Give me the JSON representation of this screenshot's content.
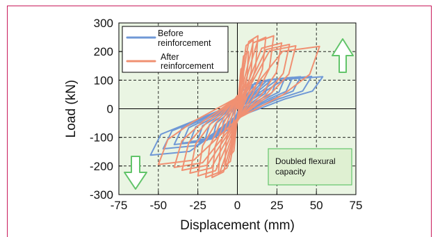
{
  "chart_data": {
    "type": "line",
    "title": "",
    "xlabel": "Displacement (mm)",
    "ylabel": "Load (kN)",
    "xlim": [
      -75,
      75
    ],
    "ylim": [
      -300,
      300
    ],
    "xticks": [
      "-75",
      "-50",
      "-25",
      "0",
      "25",
      "50",
      "75"
    ],
    "yticks": [
      "300",
      "200",
      "100",
      "0",
      "-100",
      "-200",
      "-300"
    ],
    "grid": true,
    "legend_position": "top-left",
    "series": [
      {
        "name": "Before reinforcement",
        "color": "#6f98d6",
        "peaks": [
          {
            "d": 5,
            "p": 68
          },
          {
            "d": 10,
            "p": 80
          },
          {
            "d": 15,
            "p": 90
          },
          {
            "d": 20,
            "p": 98
          },
          {
            "d": 25,
            "p": 103
          },
          {
            "d": 30,
            "p": 107
          },
          {
            "d": 35,
            "p": 110
          },
          {
            "d": 40,
            "p": 112
          },
          {
            "d": 47,
            "p": 113
          },
          {
            "d": 54,
            "p": 112
          }
        ],
        "valleys": [
          {
            "d": -5,
            "p": -68
          },
          {
            "d": -10,
            "p": -80
          },
          {
            "d": -15,
            "p": -90
          },
          {
            "d": -20,
            "p": -100
          },
          {
            "d": -25,
            "p": -108
          },
          {
            "d": -30,
            "p": -115
          },
          {
            "d": -35,
            "p": -120
          },
          {
            "d": -40,
            "p": -125
          },
          {
            "d": -47,
            "p": -140
          },
          {
            "d": -55,
            "p": -162
          }
        ]
      },
      {
        "name": "After reinforcement",
        "color": "#f09072",
        "peaks": [
          {
            "d": 4,
            "p": 150
          },
          {
            "d": 7,
            "p": 200
          },
          {
            "d": 10,
            "p": 240
          },
          {
            "d": 13,
            "p": 255
          },
          {
            "d": 18,
            "p": 250
          },
          {
            "d": 23,
            "p": 255
          },
          {
            "d": 28,
            "p": 230
          },
          {
            "d": 33,
            "p": 225
          },
          {
            "d": 37,
            "p": 220
          },
          {
            "d": 52,
            "p": 218
          }
        ],
        "valleys": [
          {
            "d": -4,
            "p": -160
          },
          {
            "d": -8,
            "p": -200
          },
          {
            "d": -12,
            "p": -225
          },
          {
            "d": -16,
            "p": -240
          },
          {
            "d": -20,
            "p": -240
          },
          {
            "d": -25,
            "p": -235
          },
          {
            "d": -30,
            "p": -225
          },
          {
            "d": -35,
            "p": -215
          },
          {
            "d": -40,
            "p": -205
          },
          {
            "d": -50,
            "p": -195
          }
        ]
      }
    ],
    "annotation": "Doubled flexural capacity",
    "colors": {
      "plot_background": "#eaf5e3",
      "grid": "#000000",
      "frame_border": "#c8195a",
      "arrow_fill": "#ffffff",
      "arrow_stroke": "#62c46a",
      "note_fill": "#dff0d2",
      "note_stroke": "#62c46a"
    }
  }
}
